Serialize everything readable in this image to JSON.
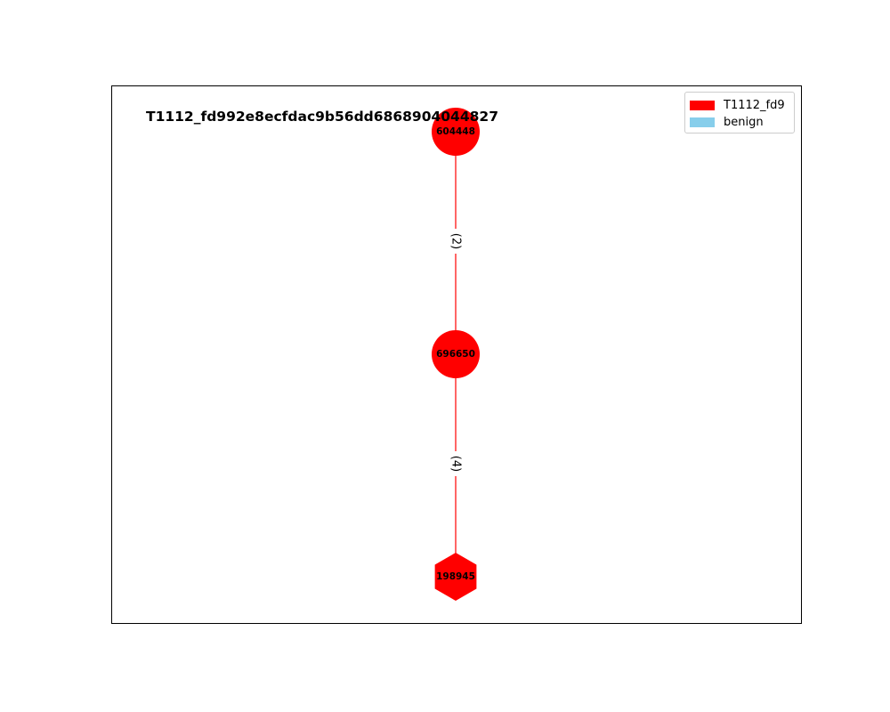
{
  "title": "T1112_fd992e8ecfdac9b56dd6868904044827",
  "legend": [
    {
      "label": "T1112_fd9",
      "color": "#ff0000"
    },
    {
      "label": "benign",
      "color": "#87ceeb"
    }
  ],
  "nodes": [
    {
      "id": "604448",
      "shape": "circle",
      "color": "#ff0000"
    },
    {
      "id": "696650",
      "shape": "circle",
      "color": "#ff0000"
    },
    {
      "id": "198945",
      "shape": "hexagon",
      "color": "#ff0000"
    }
  ],
  "edges": [
    {
      "from": "604448",
      "to": "696650",
      "label": "(2)",
      "color": "#ff0000"
    },
    {
      "from": "696650",
      "to": "198945",
      "label": "(4)",
      "color": "#ff0000"
    }
  ]
}
